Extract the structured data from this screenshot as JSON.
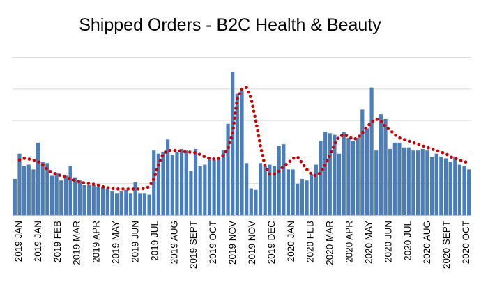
{
  "chart_data": {
    "type": "bar",
    "title": "Shipped Orders - B2C Health & Beauty",
    "xlabel": "",
    "ylabel": "",
    "ylim": [
      0,
      55
    ],
    "grid": true,
    "legend": "none",
    "tick_labels": [
      "2019 JAN",
      "2019 JAN",
      "2019 FEB",
      "2019 MAR",
      "2019 APR",
      "2019 MAY",
      "2019 JUN",
      "2019 JUL",
      "2019 AUG",
      "2019 SEPT",
      "2019 OCT",
      "2019 NOV",
      "2019 NOV",
      "2019 DEC",
      "2020 JAN",
      "2020 FEB",
      "2020 MAR",
      "2020 APR",
      "2020 MAY",
      "2020 JUN",
      "2020 JUL",
      "2020 AUG",
      "2020 SEPT",
      "2020 OCT"
    ],
    "series": [
      {
        "type": "bar",
        "color": "#4a7ebb",
        "values": [
          11.5,
          19.5,
          15.5,
          16,
          14.5,
          23,
          17,
          16.5,
          12.5,
          13.5,
          11,
          12.5,
          15.5,
          12,
          11,
          9.5,
          9.5,
          9.5,
          9,
          9,
          8.5,
          7.5,
          7,
          7.5,
          8,
          7,
          10.5,
          7,
          7,
          6.5,
          20.5,
          19.5,
          20,
          24,
          19,
          20,
          21,
          20.5,
          14,
          21,
          15.5,
          16,
          18.5,
          17.5,
          18,
          20.5,
          29,
          45.5,
          38.5,
          39.5,
          16.5,
          8.5,
          8,
          16.5,
          15.5,
          16,
          15.5,
          22,
          22.5,
          14.5,
          14.5,
          10,
          11.5,
          11,
          13,
          16,
          23.5,
          26.5,
          26,
          25.5,
          19.5,
          26.5,
          24.5,
          23.5,
          24.5,
          33.5,
          27.5,
          40.5,
          20.5,
          32,
          30.5,
          21,
          23,
          23,
          21.5,
          21.5,
          20.5,
          20.5,
          21,
          20.5,
          18.5,
          19.5,
          18.5,
          18,
          17,
          18.5,
          16,
          15.5,
          14.5
        ]
      },
      {
        "type": "dotted-trend",
        "color": "#cc0000",
        "values": [
          null,
          17.5,
          18,
          17.8,
          17.5,
          17,
          16,
          14.5,
          13.5,
          13,
          12.5,
          12,
          11.5,
          11,
          10.5,
          10.2,
          10,
          9.8,
          9.5,
          9,
          8.7,
          8.5,
          8.3,
          8.3,
          8.3,
          8.3,
          8.3,
          8.3,
          8.5,
          9,
          11.5,
          16,
          19.5,
          20.5,
          20.5,
          20.5,
          20.3,
          20,
          20,
          19.8,
          19.2,
          18.5,
          18,
          17.8,
          18,
          19,
          21,
          26,
          37,
          40,
          40.5,
          37,
          30,
          22,
          15.5,
          13,
          13,
          14,
          15.5,
          16.5,
          18,
          18.5,
          16.5,
          14.5,
          13,
          12.5,
          13.5,
          16,
          19,
          22.5,
          25,
          25.5,
          25,
          24,
          24.5,
          26,
          28,
          29.5,
          30.5,
          30,
          28,
          27,
          25.5,
          24.5,
          24,
          23.5,
          23,
          22.5,
          22,
          21.5,
          21,
          20.5,
          20,
          19.5,
          18.5,
          18,
          17.5,
          17,
          16.5
        ]
      }
    ]
  }
}
